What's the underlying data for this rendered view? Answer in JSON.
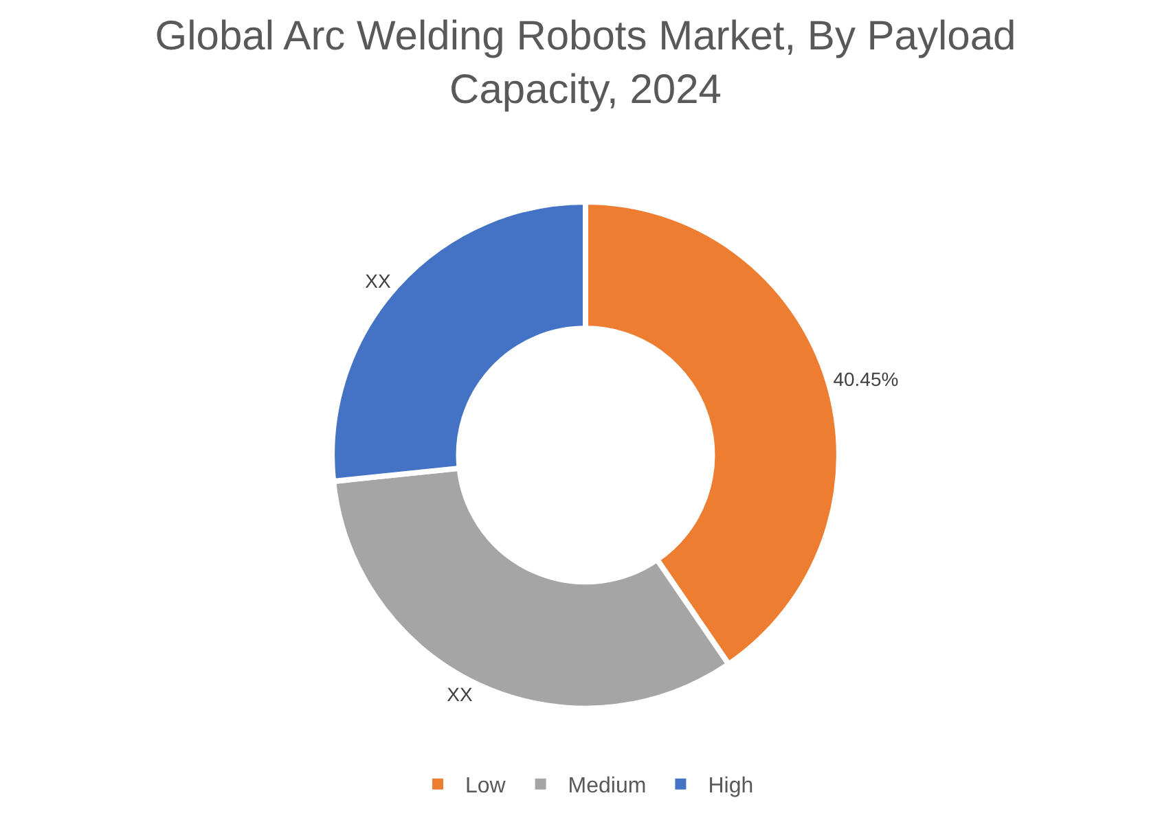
{
  "chart_data": {
    "type": "donut",
    "title": "Global Arc Welding Robots Market, By Payload Capacity, 2024",
    "categories": [
      "Low",
      "Medium",
      "High"
    ],
    "values": [
      40.45,
      32.9,
      26.65
    ],
    "colors": [
      "#ed7d31",
      "#a5a5a5",
      "#4472c4"
    ],
    "value_labels": [
      "40.45%",
      "XX",
      "XX"
    ],
    "legend": "bottom"
  }
}
